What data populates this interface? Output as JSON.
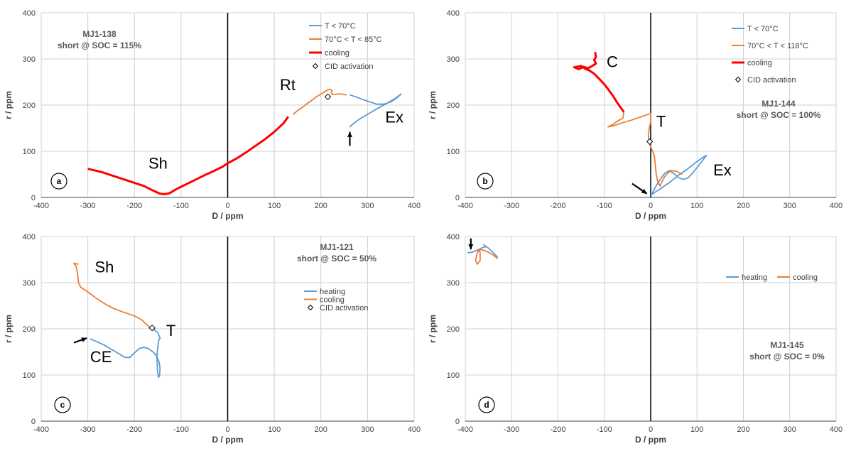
{
  "chart_data": [
    {
      "type": "line",
      "panel_label": "a",
      "title": [
        "MJ1-138",
        "short @ SOC = 115%"
      ],
      "xlabel": "D / ppm",
      "ylabel": "r / ppm",
      "xlim": [
        -400,
        400
      ],
      "ylim": [
        0,
        400
      ],
      "xticks": [
        -400,
        -300,
        -200,
        -100,
        0,
        100,
        200,
        300,
        400
      ],
      "yticks": [
        0,
        100,
        200,
        300,
        400
      ],
      "grid": true,
      "legend_position": "top-right",
      "legend_style": "vertical",
      "series": [
        {
          "name": "T < 70°C",
          "color": "#5b9bd5",
          "points": [
            [
              262,
              152
            ],
            [
              265,
              156
            ],
            [
              280,
              168
            ],
            [
              300,
              180
            ],
            [
              320,
              192
            ],
            [
              340,
              203
            ],
            [
              360,
              215
            ],
            [
              372,
              224
            ],
            [
              362,
              215
            ],
            [
              350,
              207
            ],
            [
              335,
              202
            ],
            [
              320,
              202
            ],
            [
              305,
              207
            ],
            [
              290,
              212
            ],
            [
              275,
              218
            ],
            [
              262,
              222
            ]
          ]
        },
        {
          "name": "70°C < T < 85°C",
          "color": "#ed7d31",
          "points": [
            [
              140,
              180
            ],
            [
              150,
              188
            ],
            [
              160,
              195
            ],
            [
              170,
              203
            ],
            [
              180,
              210
            ],
            [
              190,
              218
            ],
            [
              200,
              224
            ],
            [
              208,
              229
            ],
            [
              215,
              233
            ],
            [
              220,
              234
            ],
            [
              224,
              232
            ],
            [
              222,
              226
            ],
            [
              226,
              223
            ],
            [
              235,
              224
            ],
            [
              245,
              224
            ],
            [
              255,
              222
            ]
          ]
        },
        {
          "name": "cooling",
          "color": "#ff0000",
          "points": [
            [
              -300,
              62
            ],
            [
              -270,
              55
            ],
            [
              -240,
              45
            ],
            [
              -210,
              35
            ],
            [
              -180,
              25
            ],
            [
              -160,
              15
            ],
            [
              -145,
              8
            ],
            [
              -135,
              7
            ],
            [
              -125,
              9
            ],
            [
              -110,
              18
            ],
            [
              -90,
              28
            ],
            [
              -70,
              38
            ],
            [
              -50,
              48
            ],
            [
              -30,
              57
            ],
            [
              -10,
              67
            ],
            [
              0,
              74
            ],
            [
              20,
              85
            ],
            [
              40,
              98
            ],
            [
              60,
              112
            ],
            [
              80,
              126
            ],
            [
              100,
              142
            ],
            [
              120,
              161
            ],
            [
              130,
              175
            ]
          ]
        },
        {
          "name": "CID activation",
          "color": "#000000",
          "marker": "diamond",
          "points": [
            [
              215,
              218
            ]
          ]
        }
      ],
      "annotations": [
        {
          "text": "Sh",
          "x": -170,
          "y": 62
        },
        {
          "text": "Rt",
          "x": 112,
          "y": 232
        },
        {
          "text": "Ex",
          "x": 338,
          "y": 162
        }
      ],
      "arrows": [
        {
          "from": [
            262,
            112
          ],
          "to": [
            262,
            142
          ]
        }
      ]
    },
    {
      "type": "line",
      "panel_label": "b",
      "title": [
        "MJ1-144",
        "short @ SOC = 100%"
      ],
      "xlabel": "D / ppm",
      "ylabel": "r / ppm",
      "xlim": [
        -400,
        400
      ],
      "ylim": [
        0,
        400
      ],
      "xticks": [
        -400,
        -300,
        -200,
        -100,
        0,
        100,
        200,
        300,
        400
      ],
      "yticks": [
        0,
        100,
        200,
        300,
        400
      ],
      "grid": true,
      "legend_position": "top-right",
      "legend_style": "vertical",
      "series": [
        {
          "name": "T < 70°C",
          "color": "#5b9bd5",
          "points": [
            [
              0,
              5
            ],
            [
              20,
              18
            ],
            [
              40,
              32
            ],
            [
              60,
              48
            ],
            [
              80,
              62
            ],
            [
              100,
              78
            ],
            [
              115,
              88
            ],
            [
              120,
              91
            ],
            [
              112,
              80
            ],
            [
              100,
              65
            ],
            [
              90,
              52
            ],
            [
              80,
              42
            ],
            [
              70,
              39
            ],
            [
              60,
              43
            ],
            [
              50,
              52
            ],
            [
              40,
              58
            ],
            [
              30,
              52
            ],
            [
              20,
              38
            ],
            [
              10,
              22
            ],
            [
              3,
              8
            ]
          ]
        },
        {
          "name": "70°C < T < 118°C",
          "color": "#ed7d31",
          "points": [
            [
              -58,
              185
            ],
            [
              -60,
              172
            ],
            [
              -72,
              165
            ],
            [
              -82,
              158
            ],
            [
              -92,
              153
            ],
            [
              -78,
              156
            ],
            [
              -60,
              162
            ],
            [
              -40,
              168
            ],
            [
              -20,
              175
            ],
            [
              0,
              182
            ],
            [
              0,
              165
            ],
            [
              -3,
              150
            ],
            [
              -5,
              135
            ],
            [
              -3,
              118
            ],
            [
              2,
              105
            ],
            [
              8,
              90
            ],
            [
              10,
              70
            ],
            [
              12,
              50
            ],
            [
              15,
              35
            ],
            [
              20,
              25
            ],
            [
              30,
              45
            ],
            [
              42,
              58
            ],
            [
              55,
              57
            ],
            [
              68,
              50
            ]
          ]
        },
        {
          "name": "cooling",
          "color": "#ff0000",
          "points": [
            [
              -120,
              315
            ],
            [
              -118,
              305
            ],
            [
              -122,
              298
            ],
            [
              -118,
              290
            ],
            [
              -126,
              285
            ],
            [
              -135,
              280
            ],
            [
              -145,
              283
            ],
            [
              -155,
              278
            ],
            [
              -165,
              282
            ],
            [
              -150,
              285
            ],
            [
              -140,
              278
            ],
            [
              -132,
              275
            ],
            [
              -122,
              268
            ],
            [
              -112,
              258
            ],
            [
              -100,
              245
            ],
            [
              -90,
              232
            ],
            [
              -80,
              218
            ],
            [
              -72,
              205
            ],
            [
              -65,
              195
            ],
            [
              -60,
              188
            ],
            [
              -58,
              185
            ]
          ]
        },
        {
          "name": "CID activation",
          "color": "#000000",
          "marker": "diamond",
          "points": [
            [
              -2,
              121
            ]
          ]
        }
      ],
      "annotations": [
        {
          "text": "C",
          "x": -95,
          "y": 282
        },
        {
          "text": "T",
          "x": 12,
          "y": 153
        },
        {
          "text": "Ex",
          "x": 135,
          "y": 48
        }
      ],
      "arrows": [
        {
          "from": [
            -40,
            30
          ],
          "to": [
            -8,
            8
          ]
        }
      ]
    },
    {
      "type": "line",
      "panel_label": "c",
      "title": [
        "MJ1-121",
        "short @ SOC = 50%"
      ],
      "xlabel": "D / ppm",
      "ylabel": "r / ppm",
      "xlim": [
        -400,
        400
      ],
      "ylim": [
        0,
        400
      ],
      "xticks": [
        -400,
        -300,
        -200,
        -100,
        0,
        100,
        200,
        300,
        400
      ],
      "yticks": [
        0,
        100,
        200,
        300,
        400
      ],
      "grid": true,
      "legend_position": "center-right",
      "legend_style": "vertical",
      "series": [
        {
          "name": "heating",
          "color": "#5b9bd5",
          "points": [
            [
              -295,
              178
            ],
            [
              -280,
              172
            ],
            [
              -265,
              165
            ],
            [
              -250,
              156
            ],
            [
              -235,
              147
            ],
            [
              -220,
              138
            ],
            [
              -210,
              138
            ],
            [
              -200,
              148
            ],
            [
              -190,
              157
            ],
            [
              -180,
              160
            ],
            [
              -170,
              157
            ],
            [
              -160,
              150
            ],
            [
              -152,
              140
            ],
            [
              -147,
              128
            ],
            [
              -145,
              115
            ],
            [
              -146,
              100
            ],
            [
              -148,
              95
            ],
            [
              -150,
              102
            ],
            [
              -151,
              120
            ],
            [
              -152,
              140
            ],
            [
              -150,
              160
            ],
            [
              -148,
              175
            ],
            [
              -145,
              180
            ],
            [
              -150,
              192
            ],
            [
              -158,
              198
            ],
            [
              -165,
              202
            ]
          ]
        },
        {
          "name": "cooling",
          "color": "#ed7d31",
          "points": [
            [
              -165,
              202
            ],
            [
              -175,
              210
            ],
            [
              -185,
              220
            ],
            [
              -200,
              228
            ],
            [
              -220,
              235
            ],
            [
              -240,
              242
            ],
            [
              -260,
              252
            ],
            [
              -280,
              265
            ],
            [
              -300,
              280
            ],
            [
              -315,
              290
            ],
            [
              -320,
              300
            ],
            [
              -322,
              320
            ],
            [
              -325,
              335
            ],
            [
              -330,
              342
            ],
            [
              -320,
              340
            ]
          ]
        },
        {
          "name": "CID activation",
          "color": "#000000",
          "marker": "diamond",
          "points": [
            [
              -162,
              202
            ]
          ]
        }
      ],
      "annotations": [
        {
          "text": "Sh",
          "x": -285,
          "y": 322
        },
        {
          "text": "T",
          "x": -132,
          "y": 185
        },
        {
          "text": "CE",
          "x": -295,
          "y": 128
        }
      ],
      "arrows": [
        {
          "from": [
            -330,
            170
          ],
          "to": [
            -302,
            180
          ]
        }
      ]
    },
    {
      "type": "line",
      "panel_label": "d",
      "title": [
        "MJ1-145",
        "short @ SOC = 0%"
      ],
      "xlabel": "D / ppm",
      "ylabel": "r / ppm",
      "xlim": [
        -400,
        400
      ],
      "ylim": [
        0,
        400
      ],
      "xticks": [
        -400,
        -300,
        -200,
        -100,
        0,
        100,
        200,
        300,
        400
      ],
      "yticks": [
        0,
        100,
        200,
        300,
        400
      ],
      "grid": true,
      "legend_position": "upper-right",
      "legend_style": "horizontal",
      "series": [
        {
          "name": "heating",
          "color": "#5b9bd5",
          "points": [
            [
              -395,
              365
            ],
            [
              -385,
              366
            ],
            [
              -375,
              370
            ],
            [
              -365,
              375
            ],
            [
              -355,
              378
            ],
            [
              -360,
              382
            ],
            [
              -350,
              375
            ],
            [
              -340,
              365
            ],
            [
              -330,
              355
            ]
          ]
        },
        {
          "name": "cooling",
          "color": "#ed7d31",
          "points": [
            [
              -330,
              352
            ],
            [
              -340,
              360
            ],
            [
              -350,
              366
            ],
            [
              -360,
              370
            ],
            [
              -370,
              372
            ],
            [
              -375,
              362
            ],
            [
              -378,
              348
            ],
            [
              -374,
              340
            ],
            [
              -368,
              348
            ],
            [
              -368,
              365
            ],
            [
              -370,
              372
            ]
          ]
        }
      ],
      "annotations": [],
      "arrows": [
        {
          "from": [
            -388,
            396
          ],
          "to": [
            -388,
            372
          ]
        }
      ]
    }
  ]
}
